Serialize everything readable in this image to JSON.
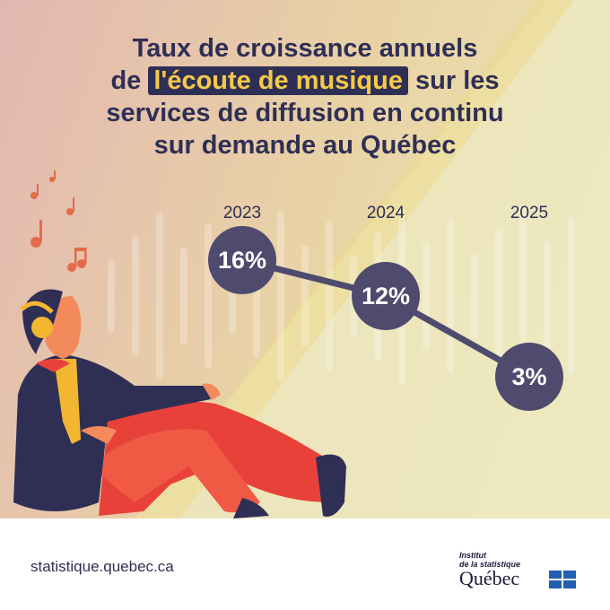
{
  "chart_data": {
    "type": "line",
    "title": [
      "Taux de croissance annuels",
      "de",
      "l'écoute de musique",
      "sur les",
      "services de diffusion en continu",
      "sur demande au Québec"
    ],
    "categories": [
      "2023",
      "2024",
      "2025"
    ],
    "values": [
      16,
      12,
      3
    ],
    "value_labels": [
      "16%",
      "12%",
      "3%"
    ],
    "color": "#4e4b6e"
  },
  "footer": {
    "url": "statistique.quebec.ca",
    "logo": [
      "Institut",
      "de la statistique",
      "Québec"
    ]
  }
}
